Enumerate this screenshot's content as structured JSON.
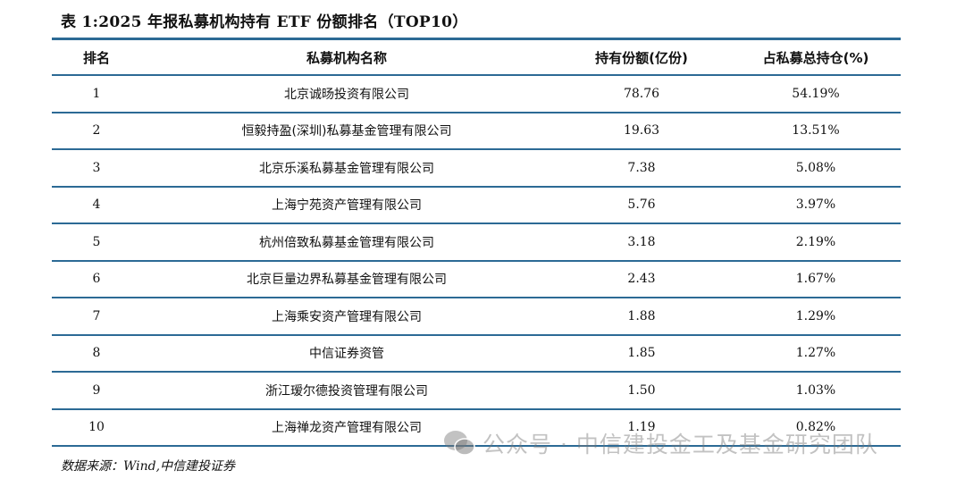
{
  "title": "表 1:2025 年报私募机构持有 ETF 份额排名（TOP10）",
  "table": {
    "headers": [
      "排名",
      "私募机构名称",
      "持有份额(亿份)",
      "占私募总持仓(%)"
    ],
    "rows": [
      [
        "1",
        "北京诚旸投资有限公司",
        "78.76",
        "54.19%"
      ],
      [
        "2",
        "恒毅持盈(深圳)私募基金管理有限公司",
        "19.63",
        "13.51%"
      ],
      [
        "3",
        "北京乐溪私募基金管理有限公司",
        "7.38",
        "5.08%"
      ],
      [
        "4",
        "上海宁苑资产管理有限公司",
        "5.76",
        "3.97%"
      ],
      [
        "5",
        "杭州倍致私募基金管理有限公司",
        "3.18",
        "2.19%"
      ],
      [
        "6",
        "北京巨量边界私募基金管理有限公司",
        "2.43",
        "1.67%"
      ],
      [
        "7",
        "上海乘安资产管理有限公司",
        "1.88",
        "1.29%"
      ],
      [
        "8",
        "中信证券资管",
        "1.85",
        "1.27%"
      ],
      [
        "9",
        "浙江瑷尔德投资管理有限公司",
        "1.50",
        "1.03%"
      ],
      [
        "10",
        "上海禅龙资产管理有限公司",
        "1.19",
        "0.82%"
      ]
    ]
  },
  "source": "数据来源：Wind,中信建投证券",
  "watermark": {
    "icon": "wechat-icon",
    "text": "公众号 · 中信建投金工及基金研究团队"
  },
  "colors": {
    "rule": "#2c6a95"
  }
}
